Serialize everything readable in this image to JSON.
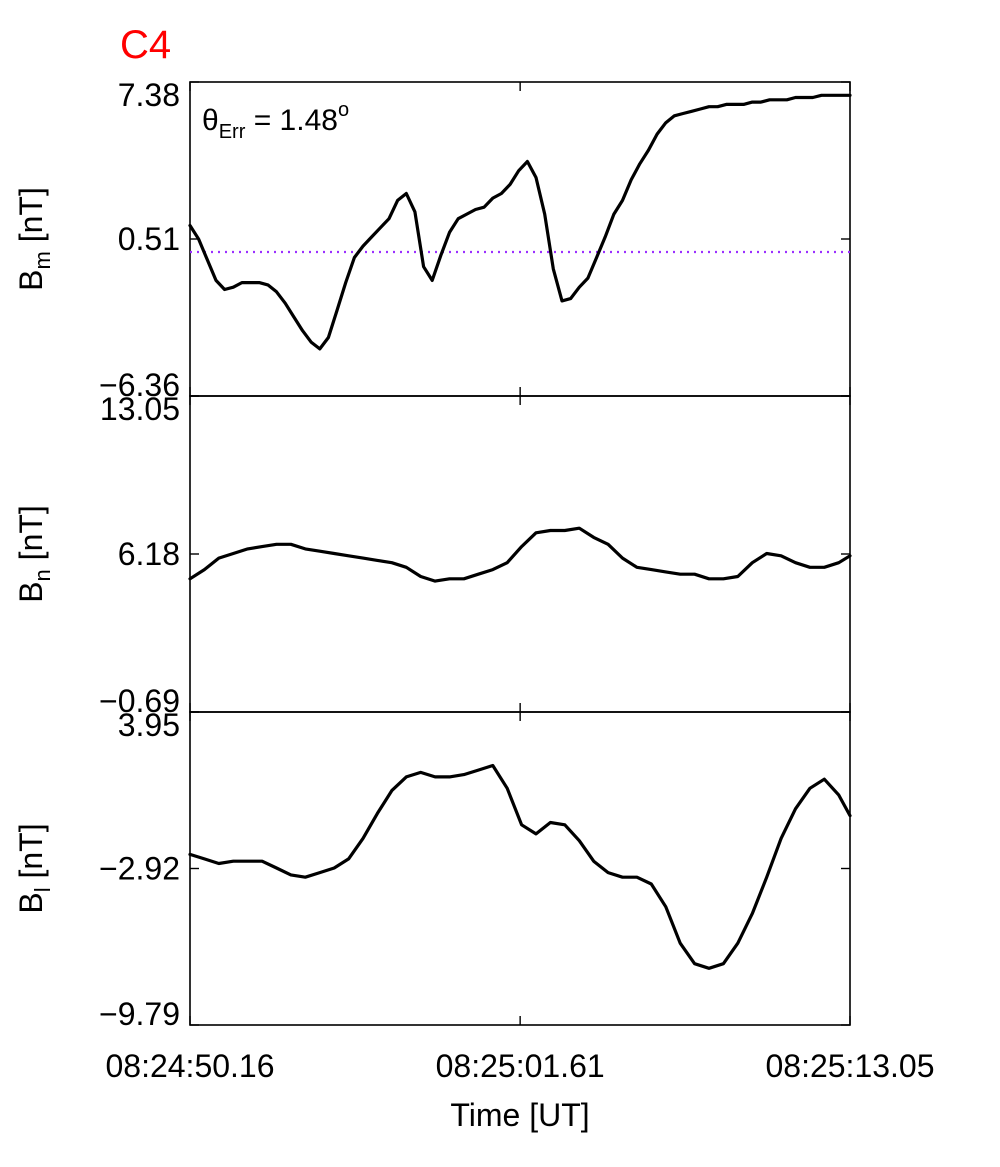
{
  "title": "C4",
  "annotation": {
    "theta": "θ",
    "sub": "Err",
    "eq": " =  1.48",
    "sup": "o"
  },
  "xlabel": "Time [UT]",
  "colors": {
    "title": "#ff0000",
    "line": "#000000",
    "reference": "#9b30ff"
  },
  "chart_data": [
    {
      "type": "line",
      "panel": "Bm",
      "ylabel": {
        "main": "B",
        "sub": "m",
        "unit": " [nT]"
      },
      "ylim": [
        -6.36,
        7.38
      ],
      "yticks": [
        "7.38",
        "0.51",
        "−6.36"
      ],
      "reference_line": {
        "y": -0.06,
        "style": "dotted"
      },
      "x": [
        0,
        0.3,
        0.6,
        0.9,
        1.2,
        1.5,
        1.8,
        2.1,
        2.4,
        2.7,
        3.0,
        3.3,
        3.6,
        3.9,
        4.2,
        4.5,
        4.8,
        5.1,
        5.4,
        5.7,
        6.0,
        6.3,
        6.6,
        6.9,
        7.2,
        7.5,
        7.8,
        8.1,
        8.4,
        8.7,
        9.0,
        9.3,
        9.6,
        9.9,
        10.2,
        10.5,
        10.8,
        11.1,
        11.4,
        11.7,
        12.0,
        12.3,
        12.6,
        12.9,
        13.2,
        13.5,
        13.8,
        14.1,
        14.4,
        14.7,
        15.0,
        15.3,
        15.6,
        15.9,
        16.2,
        16.5,
        16.8,
        17.1,
        17.4,
        17.7,
        18.0,
        18.3,
        18.6,
        18.9,
        19.2,
        19.5,
        19.8,
        20.1,
        20.4,
        20.7,
        21.0,
        21.3,
        21.6,
        21.9,
        22.2,
        22.5,
        22.89
      ],
      "y": [
        1.1,
        0.5,
        -0.4,
        -1.3,
        -1.7,
        -1.6,
        -1.4,
        -1.4,
        -1.4,
        -1.5,
        -1.8,
        -2.3,
        -2.9,
        -3.5,
        -4.0,
        -4.3,
        -3.8,
        -2.6,
        -1.4,
        -0.3,
        0.2,
        0.6,
        1.0,
        1.4,
        2.2,
        2.5,
        1.7,
        -0.7,
        -1.3,
        -0.2,
        0.8,
        1.4,
        1.6,
        1.8,
        1.9,
        2.3,
        2.5,
        2.9,
        3.5,
        3.9,
        3.2,
        1.6,
        -0.8,
        -2.2,
        -2.1,
        -1.6,
        -1.2,
        -0.3,
        0.6,
        1.6,
        2.2,
        3.1,
        3.8,
        4.4,
        5.1,
        5.6,
        5.9,
        6.0,
        6.1,
        6.2,
        6.3,
        6.3,
        6.4,
        6.4,
        6.4,
        6.5,
        6.5,
        6.6,
        6.6,
        6.6,
        6.7,
        6.7,
        6.7,
        6.8,
        6.8,
        6.8,
        6.8
      ]
    },
    {
      "type": "line",
      "panel": "Bn",
      "ylabel": {
        "main": "B",
        "sub": "n",
        "unit": " [nT]"
      },
      "ylim": [
        -0.69,
        13.05
      ],
      "yticks": [
        "13.05",
        "6.18",
        "−0.69"
      ],
      "x": [
        0,
        0.5,
        1.0,
        1.5,
        2.0,
        2.5,
        3.0,
        3.5,
        4.0,
        4.5,
        5.0,
        5.5,
        6.0,
        6.5,
        7.0,
        7.5,
        8.0,
        8.5,
        9.0,
        9.5,
        10.0,
        10.5,
        11.0,
        11.5,
        12.0,
        12.5,
        13.0,
        13.5,
        14.0,
        14.5,
        15.0,
        15.5,
        16.0,
        16.5,
        17.0,
        17.5,
        18.0,
        18.5,
        19.0,
        19.5,
        20.0,
        20.5,
        21.0,
        21.5,
        22.0,
        22.5,
        22.89
      ],
      "y": [
        5.1,
        5.5,
        6.0,
        6.2,
        6.4,
        6.5,
        6.6,
        6.6,
        6.4,
        6.3,
        6.2,
        6.1,
        6.0,
        5.9,
        5.8,
        5.6,
        5.2,
        5.0,
        5.1,
        5.1,
        5.3,
        5.5,
        5.8,
        6.5,
        7.1,
        7.2,
        7.2,
        7.3,
        6.9,
        6.6,
        6.0,
        5.6,
        5.5,
        5.4,
        5.3,
        5.3,
        5.1,
        5.1,
        5.2,
        5.8,
        6.2,
        6.1,
        5.8,
        5.6,
        5.6,
        5.8,
        6.1
      ]
    },
    {
      "type": "line",
      "panel": "Bl",
      "ylabel": {
        "main": "B",
        "sub": "l",
        "unit": " [nT]"
      },
      "ylim": [
        -9.79,
        3.95
      ],
      "yticks": [
        "3.95",
        "−2.92",
        "−9.79"
      ],
      "x": [
        0,
        0.5,
        1.0,
        1.5,
        2.0,
        2.5,
        3.0,
        3.5,
        4.0,
        4.5,
        5.0,
        5.5,
        6.0,
        6.5,
        7.0,
        7.5,
        8.0,
        8.5,
        9.0,
        9.5,
        10.0,
        10.5,
        11.0,
        11.5,
        12.0,
        12.5,
        13.0,
        13.5,
        14.0,
        14.5,
        15.0,
        15.5,
        16.0,
        16.5,
        17.0,
        17.5,
        18.0,
        18.5,
        19.0,
        19.5,
        20.0,
        20.5,
        21.0,
        21.5,
        22.0,
        22.5,
        22.89
      ],
      "y": [
        -2.3,
        -2.5,
        -2.7,
        -2.6,
        -2.6,
        -2.6,
        -2.9,
        -3.2,
        -3.3,
        -3.1,
        -2.9,
        -2.5,
        -1.6,
        -0.5,
        0.5,
        1.1,
        1.3,
        1.1,
        1.1,
        1.2,
        1.4,
        1.6,
        0.6,
        -1.0,
        -1.4,
        -0.9,
        -1.0,
        -1.7,
        -2.6,
        -3.1,
        -3.3,
        -3.3,
        -3.6,
        -4.6,
        -6.2,
        -7.1,
        -7.3,
        -7.1,
        -6.2,
        -4.9,
        -3.3,
        -1.6,
        -0.3,
        0.6,
        1.0,
        0.3,
        -0.6
      ]
    }
  ],
  "xaxis": {
    "range_seconds": [
      0,
      22.89
    ],
    "ticks": [
      {
        "value": 0,
        "label": "08:24:50.16"
      },
      {
        "value": 11.45,
        "label": "08:25:01.61"
      },
      {
        "value": 22.89,
        "label": "08:25:13.05"
      }
    ]
  }
}
